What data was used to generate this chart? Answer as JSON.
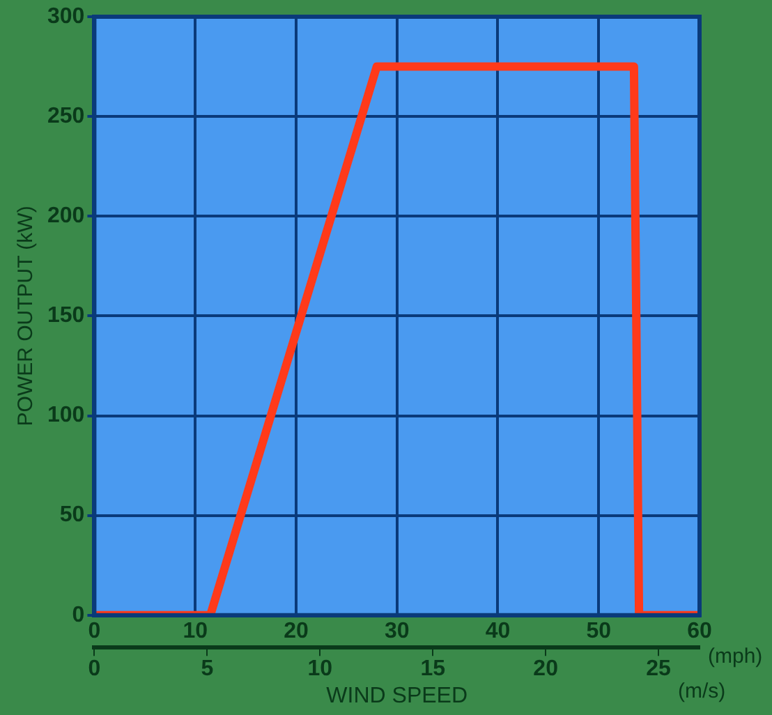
{
  "chart_data": {
    "type": "line",
    "xlabel": "WIND SPEED",
    "ylabel": "POWER OUTPUT (kW)",
    "x": [
      0,
      11.5,
      28,
      53.5,
      54,
      60
    ],
    "series": [
      {
        "color": "#ff3a1a",
        "values": [
          0,
          0,
          275,
          275,
          0,
          0
        ]
      }
    ],
    "xlim": [
      0,
      60
    ],
    "xticks": [
      0,
      10,
      20,
      30,
      40,
      50,
      60
    ],
    "x2lim": [
      0,
      26.82
    ],
    "x2ticks": [
      0,
      5,
      10,
      15,
      20,
      25
    ],
    "ylim": [
      0,
      300
    ],
    "yticks": [
      0,
      50,
      100,
      150,
      200,
      250,
      300
    ],
    "annotations": [
      "(mph)",
      "(m/s)"
    ],
    "grid": true,
    "marker": "none",
    "line_style": "solid",
    "legend": false
  }
}
